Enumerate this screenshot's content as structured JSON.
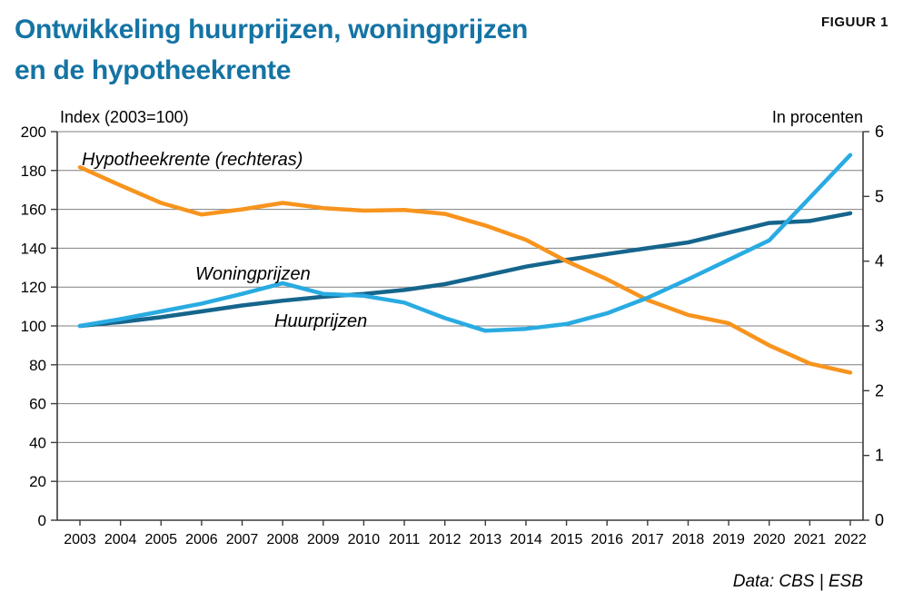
{
  "figure_label": "FIGUUR 1",
  "title": {
    "line1": "Ontwikkeling huurprijzen, woningprijzen",
    "line2": "en de hypotheekrente"
  },
  "source": "Data: CBS | ESB",
  "colors": {
    "title_blue": "#1474A4",
    "orange": "#F7941E",
    "light_blue": "#29ABE2",
    "dark_blue": "#15658C",
    "grid": "#7F7F7F",
    "axis": "#3C3C3C",
    "text": "#000000"
  },
  "chart_data": {
    "type": "line",
    "x": [
      2003,
      2004,
      2005,
      2006,
      2007,
      2008,
      2009,
      2010,
      2011,
      2012,
      2013,
      2014,
      2015,
      2016,
      2017,
      2018,
      2019,
      2020,
      2021,
      2022
    ],
    "series": [
      {
        "name": "Huurprijzen",
        "axis": "left",
        "color": "#15658C",
        "values": [
          100,
          102,
          104.5,
          107.5,
          110.5,
          113,
          115,
          116.5,
          118.5,
          121.5,
          126,
          130.5,
          134,
          137,
          140,
          143,
          148,
          153,
          154,
          158
        ]
      },
      {
        "name": "Hypotheekrente (rechteras)",
        "axis": "right",
        "color": "#F7941E",
        "values": [
          5.45,
          5.17,
          4.9,
          4.72,
          4.8,
          4.9,
          4.82,
          4.78,
          4.79,
          4.73,
          4.55,
          4.33,
          4.0,
          3.72,
          3.4,
          3.17,
          3.04,
          2.7,
          2.42,
          2.28
        ]
      },
      {
        "name": "Woningprijzen",
        "axis": "left",
        "color": "#29ABE2",
        "values": [
          100,
          103.5,
          107.5,
          111.5,
          116.5,
          122,
          116.5,
          115.5,
          112,
          104,
          97.5,
          98.5,
          101,
          106.5,
          114.5,
          124,
          134,
          144,
          166,
          188
        ]
      }
    ],
    "left_axis": {
      "title": "Index (2003=100)",
      "min": 0,
      "max": 200,
      "step": 20
    },
    "right_axis": {
      "title": "In procenten",
      "min": 0,
      "max": 6,
      "step": 1
    },
    "grid": "horizontal",
    "legend_position": "inline-labels"
  }
}
